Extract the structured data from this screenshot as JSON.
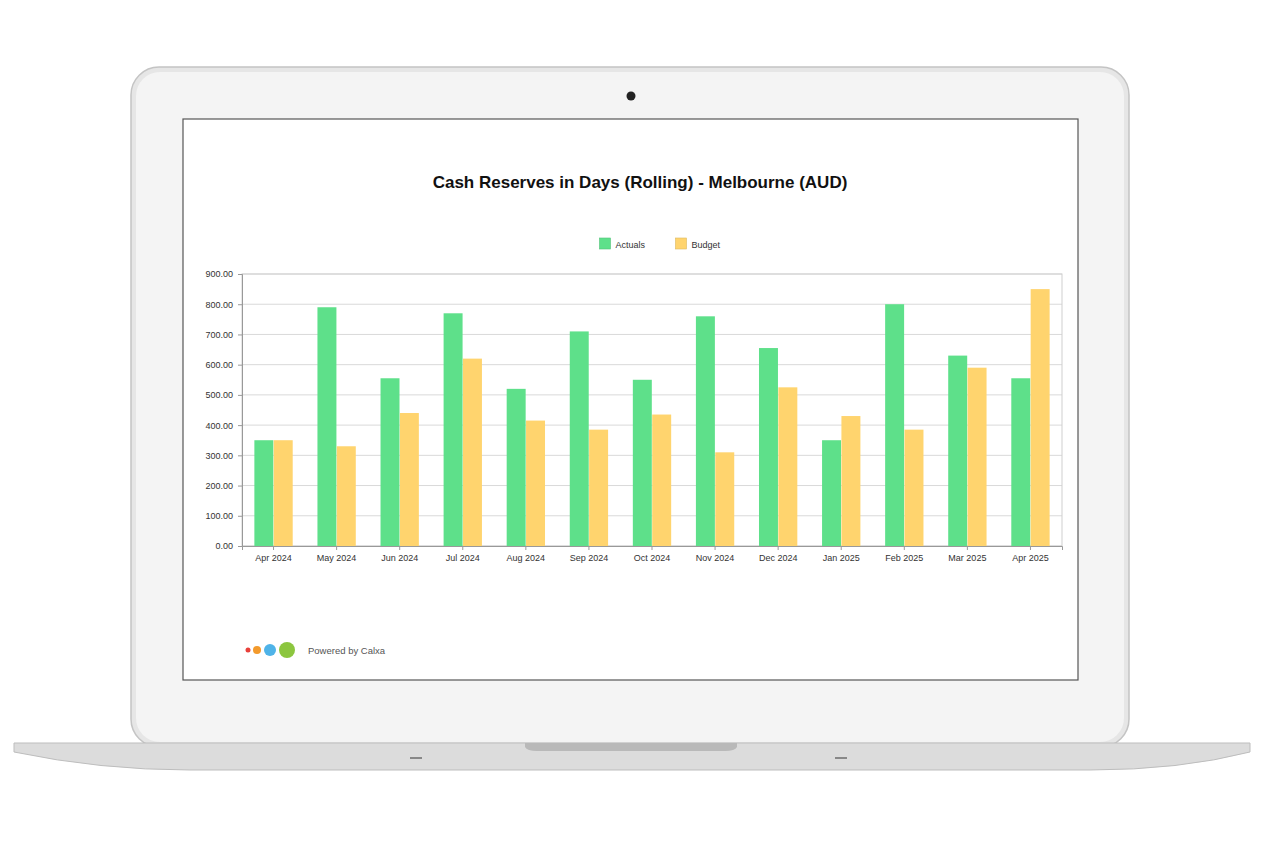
{
  "chart_data": {
    "type": "bar",
    "title": "Cash Reserves in Days (Rolling) - Melbourne (AUD)",
    "footer": "Powered by Calxa",
    "categories": [
      "Apr 2024",
      "May 2024",
      "Jun 2024",
      "Jul 2024",
      "Aug 2024",
      "Sep 2024",
      "Oct 2024",
      "Nov 2024",
      "Dec 2024",
      "Jan 2025",
      "Feb 2025",
      "Mar 2025",
      "Apr 2025"
    ],
    "series": [
      {
        "name": "Actuals",
        "color": "#5ee08a",
        "values": [
          350,
          790,
          555,
          770,
          520,
          710,
          550,
          760,
          655,
          350,
          800,
          630,
          555
        ]
      },
      {
        "name": "Budget",
        "color": "#ffd46e",
        "values": [
          350,
          330,
          440,
          620,
          415,
          385,
          435,
          310,
          525,
          430,
          385,
          590,
          850
        ]
      }
    ],
    "ylim": [
      0,
      900
    ],
    "yticks": [
      {
        "value": 0,
        "label": "0.00"
      },
      {
        "value": 100,
        "label": "100.00"
      },
      {
        "value": 200,
        "label": "200.00"
      },
      {
        "value": 300,
        "label": "300.00"
      },
      {
        "value": 400,
        "label": "400.00"
      },
      {
        "value": 500,
        "label": "500.00"
      },
      {
        "value": 600,
        "label": "600.00"
      },
      {
        "value": 700,
        "label": "700.00"
      },
      {
        "value": 800,
        "label": "800.00"
      },
      {
        "value": 900,
        "label": "900.00"
      }
    ],
    "grid": true,
    "legend": "top"
  }
}
